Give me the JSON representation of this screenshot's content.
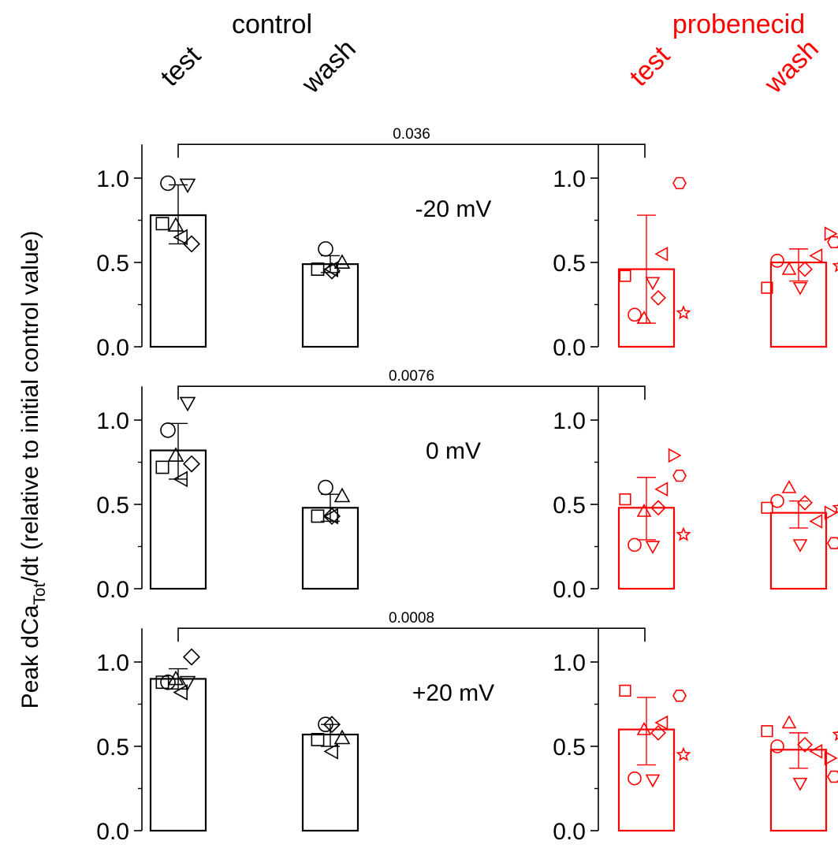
{
  "header": {
    "control": "control",
    "probenecid": "probenecid",
    "test": "test",
    "wash": "wash"
  },
  "ylabel": {
    "main": "Peak dCa",
    "sub": "Tot",
    "rest": "/dt (relative to initial control value)"
  },
  "colors": {
    "control": "#000000",
    "probenecid": "#ff0000"
  },
  "chart_data": [
    {
      "type": "bar",
      "voltage_label": "-20 mV",
      "p_value": "0.036",
      "ylim": [
        0,
        1.2
      ],
      "yticks": [
        "0.0",
        "0.5",
        "1.0"
      ],
      "groups": [
        {
          "group": "control",
          "condition": "test",
          "mean": 0.78,
          "sd_upper": 0.96,
          "sd_lower": 0.61,
          "points": [
            {
              "shape": "circle",
              "value": 0.97
            },
            {
              "shape": "triangle-down",
              "value": 0.96
            },
            {
              "shape": "square",
              "value": 0.73
            },
            {
              "shape": "triangle-up",
              "value": 0.72
            },
            {
              "shape": "diamond",
              "value": 0.61
            },
            {
              "shape": "triangle-left",
              "value": 0.65
            }
          ]
        },
        {
          "group": "control",
          "condition": "wash",
          "mean": 0.49,
          "sd_upper": 0.54,
          "sd_lower": 0.44,
          "points": [
            {
              "shape": "circle",
              "value": 0.58
            },
            {
              "shape": "triangle-up",
              "value": 0.5
            },
            {
              "shape": "square",
              "value": 0.46
            },
            {
              "shape": "diamond",
              "value": 0.45
            },
            {
              "shape": "triangle-left",
              "value": 0.46
            }
          ]
        },
        {
          "group": "probenecid",
          "condition": "test",
          "mean": 0.46,
          "sd_upper": 0.78,
          "sd_lower": 0.14,
          "points": [
            {
              "shape": "square",
              "value": 0.42
            },
            {
              "shape": "circle",
              "value": 0.19
            },
            {
              "shape": "triangle-up",
              "value": 0.17
            },
            {
              "shape": "triangle-down",
              "value": 0.38
            },
            {
              "shape": "diamond",
              "value": 0.29
            },
            {
              "shape": "triangle-left",
              "value": 0.55
            },
            {
              "shape": "hexagon",
              "value": 0.97
            },
            {
              "shape": "star",
              "value": 0.2
            }
          ]
        },
        {
          "group": "probenecid",
          "condition": "wash",
          "mean": 0.5,
          "sd_upper": 0.58,
          "sd_lower": 0.39,
          "points": [
            {
              "shape": "square",
              "value": 0.35
            },
            {
              "shape": "circle",
              "value": 0.51
            },
            {
              "shape": "triangle-up",
              "value": 0.46
            },
            {
              "shape": "triangle-down",
              "value": 0.35
            },
            {
              "shape": "diamond",
              "value": 0.46
            },
            {
              "shape": "triangle-left",
              "value": 0.54
            },
            {
              "shape": "triangle-right",
              "value": 0.67
            },
            {
              "shape": "hexagon",
              "value": 0.62
            },
            {
              "shape": "star",
              "value": 0.48
            }
          ]
        }
      ]
    },
    {
      "type": "bar",
      "voltage_label": "0 mV",
      "p_value": "0.0076",
      "ylim": [
        0,
        1.2
      ],
      "yticks": [
        "0.0",
        "0.5",
        "1.0"
      ],
      "groups": [
        {
          "group": "control",
          "condition": "test",
          "mean": 0.82,
          "sd_upper": 0.98,
          "sd_lower": 0.65,
          "points": [
            {
              "shape": "circle",
              "value": 0.94
            },
            {
              "shape": "triangle-down",
              "value": 1.1
            },
            {
              "shape": "square",
              "value": 0.72
            },
            {
              "shape": "triangle-up",
              "value": 0.79
            },
            {
              "shape": "diamond",
              "value": 0.74
            },
            {
              "shape": "triangle-left",
              "value": 0.65
            }
          ]
        },
        {
          "group": "control",
          "condition": "wash",
          "mean": 0.48,
          "sd_upper": 0.56,
          "sd_lower": 0.4,
          "points": [
            {
              "shape": "circle",
              "value": 0.6
            },
            {
              "shape": "triangle-up",
              "value": 0.55
            },
            {
              "shape": "square",
              "value": 0.43
            },
            {
              "shape": "diamond",
              "value": 0.43
            },
            {
              "shape": "triangle-left",
              "value": 0.43
            }
          ]
        },
        {
          "group": "probenecid",
          "condition": "test",
          "mean": 0.48,
          "sd_upper": 0.66,
          "sd_lower": 0.29,
          "points": [
            {
              "shape": "square",
              "value": 0.53
            },
            {
              "shape": "circle",
              "value": 0.26
            },
            {
              "shape": "triangle-up",
              "value": 0.46
            },
            {
              "shape": "triangle-down",
              "value": 0.25
            },
            {
              "shape": "diamond",
              "value": 0.48
            },
            {
              "shape": "triangle-left",
              "value": 0.59
            },
            {
              "shape": "triangle-right",
              "value": 0.79
            },
            {
              "shape": "hexagon",
              "value": 0.67
            },
            {
              "shape": "star",
              "value": 0.32
            }
          ]
        },
        {
          "group": "probenecid",
          "condition": "wash",
          "mean": 0.45,
          "sd_upper": 0.52,
          "sd_lower": 0.36,
          "points": [
            {
              "shape": "square",
              "value": 0.48
            },
            {
              "shape": "circle",
              "value": 0.52
            },
            {
              "shape": "triangle-up",
              "value": 0.6
            },
            {
              "shape": "triangle-down",
              "value": 0.26
            },
            {
              "shape": "diamond",
              "value": 0.51
            },
            {
              "shape": "triangle-left",
              "value": 0.4
            },
            {
              "shape": "triangle-right",
              "value": 0.45
            },
            {
              "shape": "hexagon",
              "value": 0.27
            },
            {
              "shape": "star",
              "value": 0.48
            }
          ]
        }
      ]
    },
    {
      "type": "bar",
      "voltage_label": "+20 mV",
      "p_value": "0.0008",
      "ylim": [
        0,
        1.2
      ],
      "yticks": [
        "0.0",
        "0.5",
        "1.0"
      ],
      "groups": [
        {
          "group": "control",
          "condition": "test",
          "mean": 0.9,
          "sd_upper": 0.96,
          "sd_lower": 0.84,
          "points": [
            {
              "shape": "circle",
              "value": 0.88
            },
            {
              "shape": "triangle-down",
              "value": 0.88
            },
            {
              "shape": "square",
              "value": 0.88
            },
            {
              "shape": "triangle-up",
              "value": 0.9
            },
            {
              "shape": "diamond",
              "value": 1.03
            },
            {
              "shape": "triangle-left",
              "value": 0.82
            }
          ]
        },
        {
          "group": "control",
          "condition": "wash",
          "mean": 0.57,
          "sd_upper": 0.63,
          "sd_lower": 0.5,
          "points": [
            {
              "shape": "circle",
              "value": 0.63
            },
            {
              "shape": "triangle-up",
              "value": 0.55
            },
            {
              "shape": "square",
              "value": 0.54
            },
            {
              "shape": "diamond",
              "value": 0.63
            },
            {
              "shape": "triangle-left",
              "value": 0.47
            }
          ]
        },
        {
          "group": "probenecid",
          "condition": "test",
          "mean": 0.6,
          "sd_upper": 0.79,
          "sd_lower": 0.39,
          "points": [
            {
              "shape": "square",
              "value": 0.83
            },
            {
              "shape": "circle",
              "value": 0.31
            },
            {
              "shape": "triangle-up",
              "value": 0.6
            },
            {
              "shape": "triangle-down",
              "value": 0.3
            },
            {
              "shape": "diamond",
              "value": 0.58
            },
            {
              "shape": "triangle-left",
              "value": 0.64
            },
            {
              "shape": "hexagon",
              "value": 0.8
            },
            {
              "shape": "star",
              "value": 0.45
            }
          ]
        },
        {
          "group": "probenecid",
          "condition": "wash",
          "mean": 0.48,
          "sd_upper": 0.58,
          "sd_lower": 0.37,
          "points": [
            {
              "shape": "square",
              "value": 0.59
            },
            {
              "shape": "circle",
              "value": 0.5
            },
            {
              "shape": "triangle-up",
              "value": 0.64
            },
            {
              "shape": "triangle-down",
              "value": 0.28
            },
            {
              "shape": "diamond",
              "value": 0.51
            },
            {
              "shape": "triangle-left",
              "value": 0.47
            },
            {
              "shape": "triangle-right",
              "value": 0.43
            },
            {
              "shape": "hexagon",
              "value": 0.32
            },
            {
              "shape": "star",
              "value": 0.57
            }
          ]
        }
      ]
    }
  ]
}
